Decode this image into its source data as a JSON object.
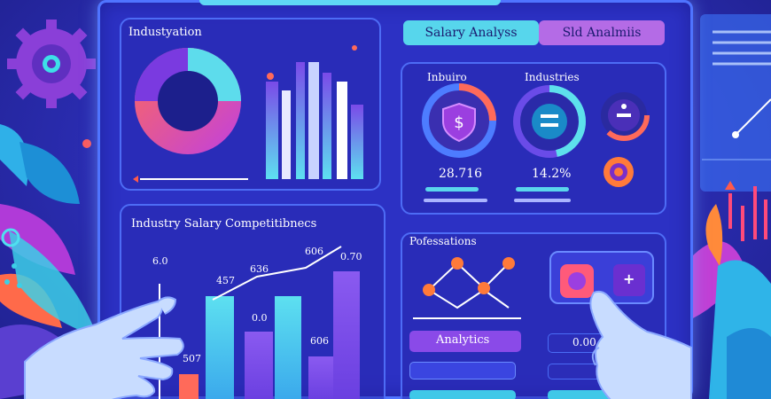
{
  "panels": {
    "industry_panel": {
      "title": "Industyation"
    },
    "salary_panel": {
      "title": "Industry Salary Competitibnecs",
      "values": [
        "6.0",
        "457",
        "636",
        "606",
        "606",
        "0.70",
        "0.0",
        "507"
      ]
    },
    "kpi_panel": {
      "labels": [
        "Inbuiro",
        "Industries"
      ],
      "values": [
        "28.716",
        "14.2%"
      ]
    },
    "professions_panel": {
      "title": "Pofessations",
      "buttons": [
        "Analytics",
        "0.00"
      ]
    }
  },
  "tabs": [
    "Salary Analyss",
    "Sld Analmiis"
  ],
  "icons": [
    "dollar-icon",
    "plus-icon",
    "gear-icon"
  ]
}
